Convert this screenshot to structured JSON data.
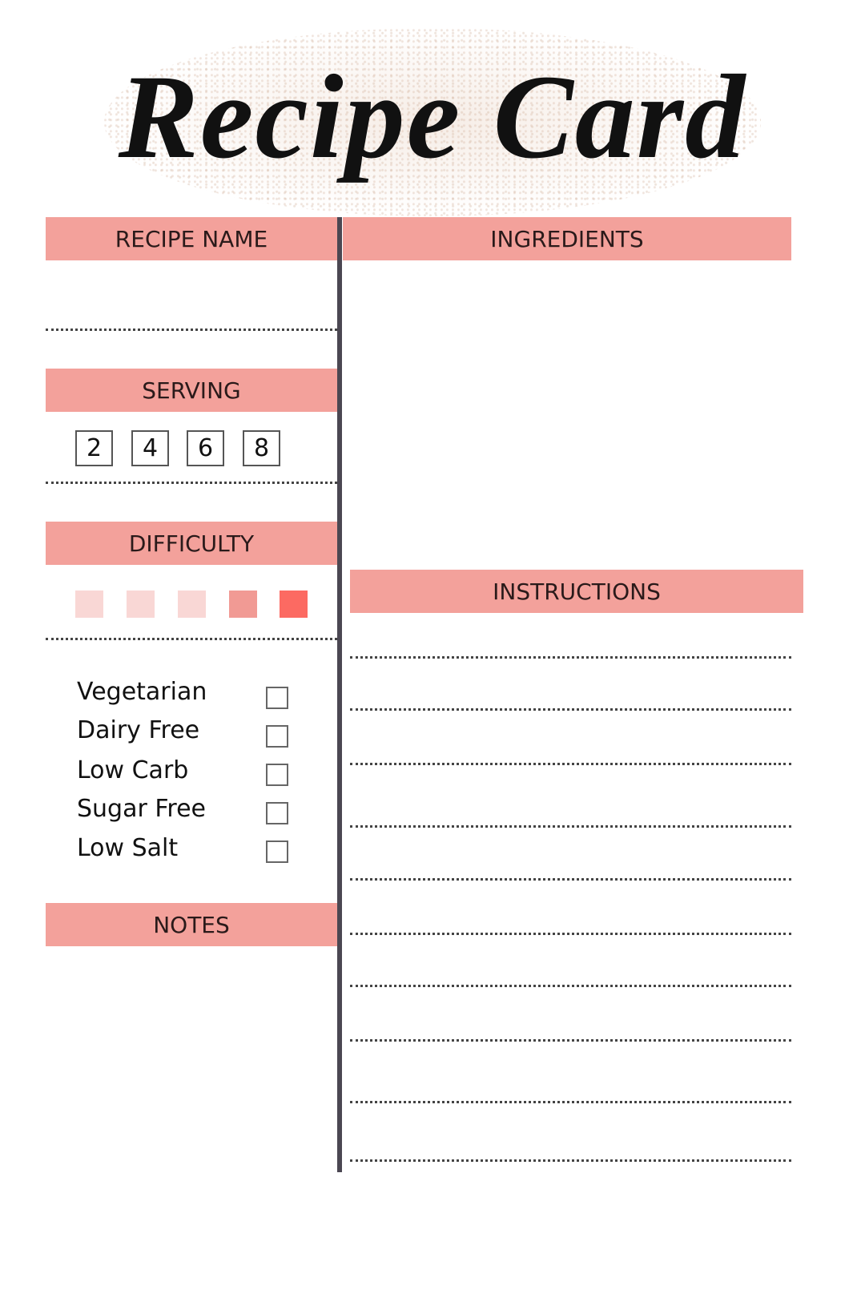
{
  "title": "Recipe Card",
  "sections": {
    "recipe_name": "RECIPE NAME",
    "ingredients": "INGREDIENTS",
    "serving": "SERVING",
    "difficulty": "DIFFICULTY",
    "instructions": "INSTRUCTIONS",
    "notes": "NOTES"
  },
  "serving_options": [
    "2",
    "4",
    "6",
    "8"
  ],
  "difficulty_levels": [
    "#f9d7d5",
    "#f9d7d5",
    "#f9d7d5",
    "#f19a94",
    "#fc6a62"
  ],
  "dietary": [
    {
      "label": "Vegetarian",
      "checked": false
    },
    {
      "label": "Dairy Free",
      "checked": false
    },
    {
      "label": "Low Carb",
      "checked": false
    },
    {
      "label": "Sugar Free",
      "checked": false
    },
    {
      "label": "Low Salt",
      "checked": false
    }
  ],
  "colors": {
    "header": "#f3a19b",
    "divider": "#4b4752"
  }
}
